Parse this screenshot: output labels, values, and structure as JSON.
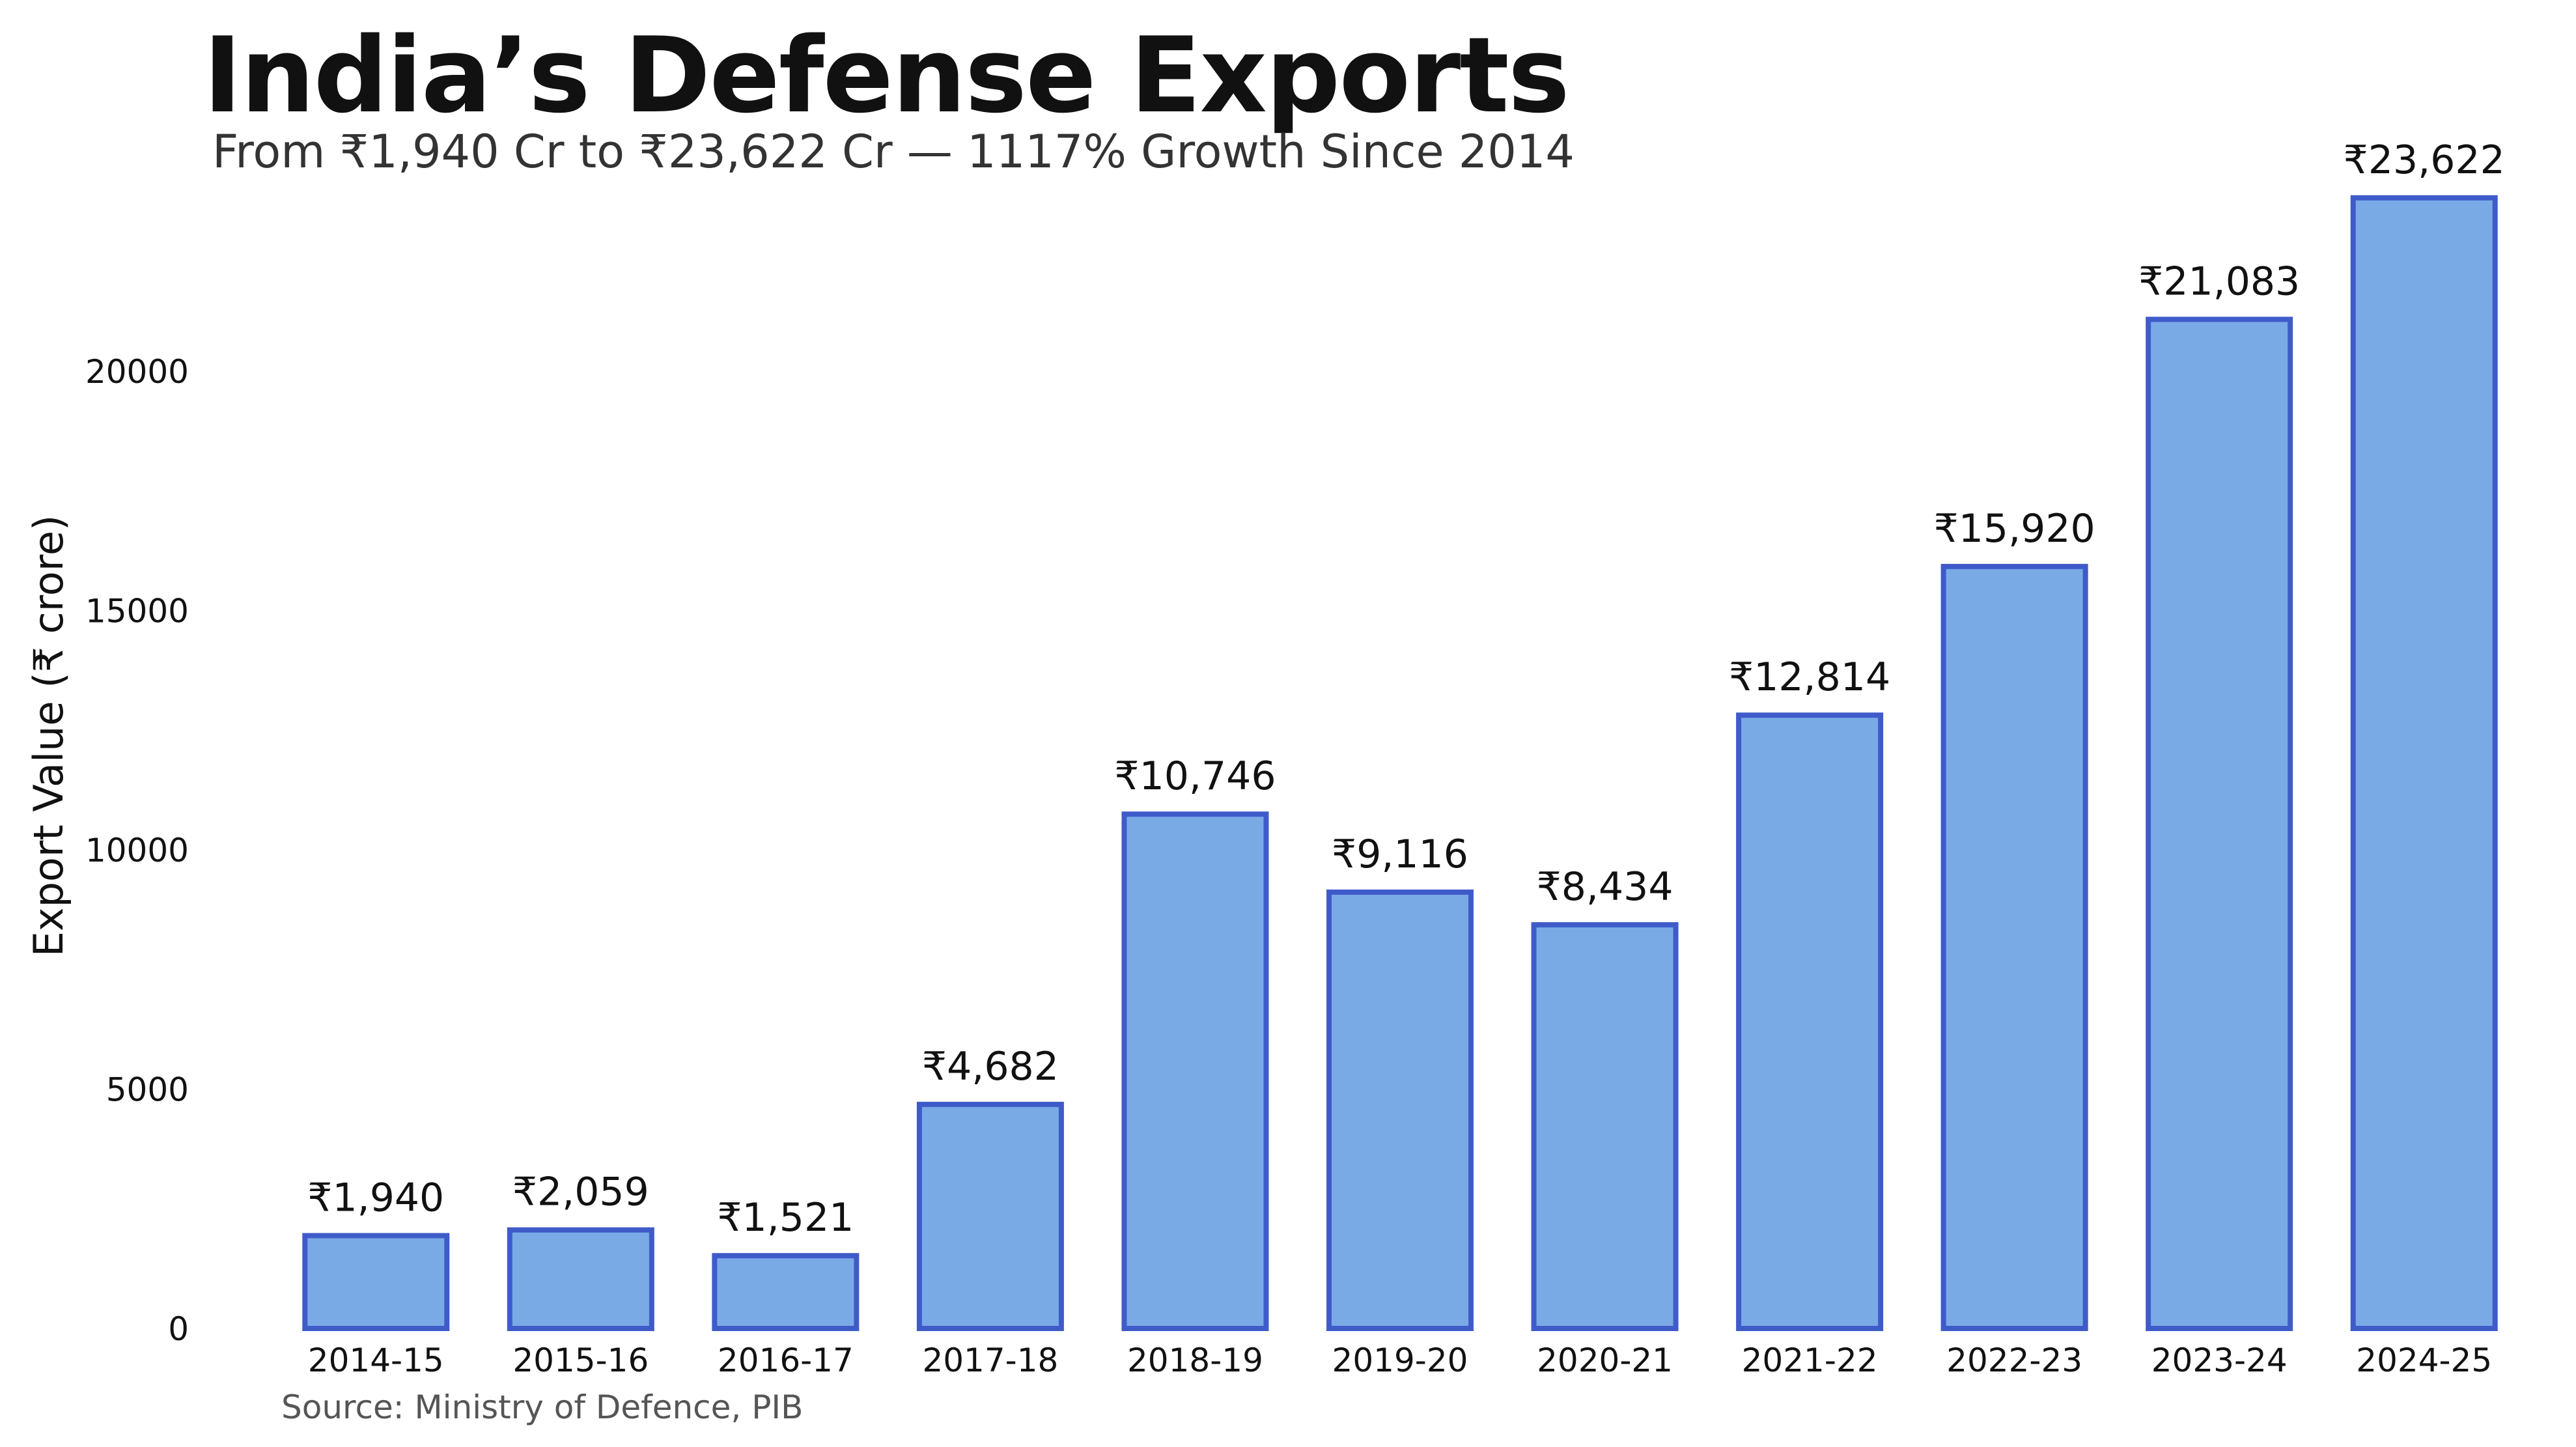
{
  "chart_data": {
    "type": "bar",
    "title": "India’s Defense Exports",
    "subtitle": "From ₹1,940 Cr to ₹23,622 Cr — 1117% Growth Since 2014",
    "xlabel": "",
    "ylabel": "Export Value (₹ crore)",
    "source": "Source: Ministry of Defence, PIB",
    "categories": [
      "2014-15",
      "2015-16",
      "2016-17",
      "2017-18",
      "2018-19",
      "2019-20",
      "2020-21",
      "2021-22",
      "2022-23",
      "2023-24",
      "2024-25"
    ],
    "values": [
      1940,
      2059,
      1521,
      4682,
      10746,
      9116,
      8434,
      12814,
      15920,
      21083,
      23622
    ],
    "data_labels": [
      "₹1,940",
      "₹2,059",
      "₹1,521",
      "₹4,682",
      "₹10,746",
      "₹9,116",
      "₹8,434",
      "₹12,814",
      "₹15,920",
      "₹21,083",
      "₹23,622"
    ],
    "yticks": [
      0,
      5000,
      10000,
      15000,
      20000
    ],
    "ylim": [
      0,
      24800
    ],
    "grid": false,
    "legend": "none",
    "colors": {
      "bar_fill": "#79aae6",
      "bar_edge": "#3f5bc9",
      "text": "#111111"
    }
  }
}
